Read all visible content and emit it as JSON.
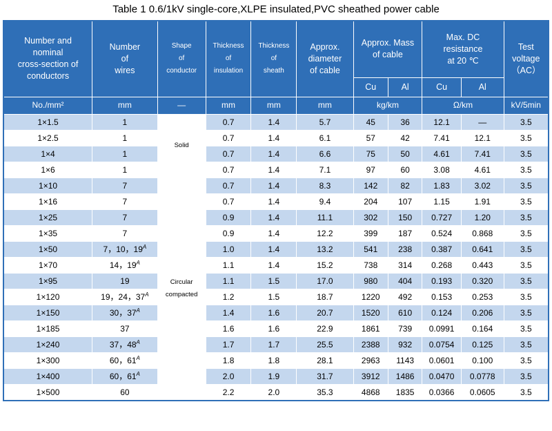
{
  "title": "Table 1    0.6/1kV single-core,XLPE insulated,PVC sheathed power cable",
  "headers": {
    "col1": [
      "Number and",
      "nominal",
      "cross-section of",
      "conductors"
    ],
    "col2": [
      "Number",
      "of",
      "wires"
    ],
    "col3": [
      "Shape",
      "of",
      "conductor"
    ],
    "col4": [
      "Thickness",
      "of",
      "insulation"
    ],
    "col5": [
      "Thickness",
      "of",
      "sheath"
    ],
    "col6": [
      "Approx.",
      "diameter",
      "of cable"
    ],
    "mass": [
      "Approx. Mass",
      "of cable"
    ],
    "resistance": [
      "Max. DC",
      "resistance",
      "at 20 ℃"
    ],
    "test": [
      "Test",
      "voltage",
      "（AC）"
    ],
    "sub": [
      "Cu",
      "Al",
      "Cu",
      "Al"
    ]
  },
  "units": [
    "No./mm²",
    "mm",
    "—",
    "mm",
    "mm",
    "mm",
    "kg/km",
    "Ω/km",
    "kV/5min"
  ],
  "shapes": {
    "solid": "Solid",
    "circular": [
      "Circular",
      "compacted"
    ]
  },
  "rows": [
    {
      "size": "1×1.5",
      "wires": "1",
      "wires_sup": "",
      "ins": "0.7",
      "sheath": "1.4",
      "dia": "5.7",
      "mcu": "45",
      "mal": "36",
      "rcu": "12.1",
      "ral": "—",
      "volt": "3.5"
    },
    {
      "size": "1×2.5",
      "wires": "1",
      "wires_sup": "",
      "ins": "0.7",
      "sheath": "1.4",
      "dia": "6.1",
      "mcu": "57",
      "mal": "42",
      "rcu": "7.41",
      "ral": "12.1",
      "volt": "3.5"
    },
    {
      "size": "1×4",
      "wires": "1",
      "wires_sup": "",
      "ins": "0.7",
      "sheath": "1.4",
      "dia": "6.6",
      "mcu": "75",
      "mal": "50",
      "rcu": "4.61",
      "ral": "7.41",
      "volt": "3.5"
    },
    {
      "size": "1×6",
      "wires": "1",
      "wires_sup": "",
      "ins": "0.7",
      "sheath": "1.4",
      "dia": "7.1",
      "mcu": "97",
      "mal": "60",
      "rcu": "3.08",
      "ral": "4.61",
      "volt": "3.5"
    },
    {
      "size": "1×10",
      "wires": "7",
      "wires_sup": "",
      "ins": "0.7",
      "sheath": "1.4",
      "dia": "8.3",
      "mcu": "142",
      "mal": "82",
      "rcu": "1.83",
      "ral": "3.02",
      "volt": "3.5"
    },
    {
      "size": "1×16",
      "wires": "7",
      "wires_sup": "",
      "ins": "0.7",
      "sheath": "1.4",
      "dia": "9.4",
      "mcu": "204",
      "mal": "107",
      "rcu": "1.15",
      "ral": "1.91",
      "volt": "3.5"
    },
    {
      "size": "1×25",
      "wires": "7",
      "wires_sup": "",
      "ins": "0.9",
      "sheath": "1.4",
      "dia": "11.1",
      "mcu": "302",
      "mal": "150",
      "rcu": "0.727",
      "ral": "1.20",
      "volt": "3.5"
    },
    {
      "size": "1×35",
      "wires": "7",
      "wires_sup": "",
      "ins": "0.9",
      "sheath": "1.4",
      "dia": "12.2",
      "mcu": "399",
      "mal": "187",
      "rcu": "0.524",
      "ral": "0.868",
      "volt": "3.5"
    },
    {
      "size": "1×50",
      "wires": "7，10，19",
      "wires_sup": "A",
      "ins": "1.0",
      "sheath": "1.4",
      "dia": "13.2",
      "mcu": "541",
      "mal": "238",
      "rcu": "0.387",
      "ral": "0.641",
      "volt": "3.5"
    },
    {
      "size": "1×70",
      "wires": "14，19",
      "wires_sup": "A",
      "ins": "1.1",
      "sheath": "1.4",
      "dia": "15.2",
      "mcu": "738",
      "mal": "314",
      "rcu": "0.268",
      "ral": "0.443",
      "volt": "3.5"
    },
    {
      "size": "1×95",
      "wires": "19",
      "wires_sup": "",
      "ins": "1.1",
      "sheath": "1.5",
      "dia": "17.0",
      "mcu": "980",
      "mal": "404",
      "rcu": "0.193",
      "ral": "0.320",
      "volt": "3.5"
    },
    {
      "size": "1×120",
      "wires": "19，24，37",
      "wires_sup": "A",
      "ins": "1.2",
      "sheath": "1.5",
      "dia": "18.7",
      "mcu": "1220",
      "mal": "492",
      "rcu": "0.153",
      "ral": "0.253",
      "volt": "3.5"
    },
    {
      "size": "1×150",
      "wires": "30，37",
      "wires_sup": "A",
      "ins": "1.4",
      "sheath": "1.6",
      "dia": "20.7",
      "mcu": "1520",
      "mal": "610",
      "rcu": "0.124",
      "ral": "0.206",
      "volt": "3.5"
    },
    {
      "size": "1×185",
      "wires": "37",
      "wires_sup": "",
      "ins": "1.6",
      "sheath": "1.6",
      "dia": "22.9",
      "mcu": "1861",
      "mal": "739",
      "rcu": "0.0991",
      "ral": "0.164",
      "volt": "3.5"
    },
    {
      "size": "1×240",
      "wires": "37，48",
      "wires_sup": "A",
      "ins": "1.7",
      "sheath": "1.7",
      "dia": "25.5",
      "mcu": "2388",
      "mal": "932",
      "rcu": "0.0754",
      "ral": "0.125",
      "volt": "3.5"
    },
    {
      "size": "1×300",
      "wires": "60，61",
      "wires_sup": "A",
      "ins": "1.8",
      "sheath": "1.8",
      "dia": "28.1",
      "mcu": "2963",
      "mal": "1143",
      "rcu": "0.0601",
      "ral": "0.100",
      "volt": "3.5"
    },
    {
      "size": "1×400",
      "wires": "60，61",
      "wires_sup": "A",
      "ins": "2.0",
      "sheath": "1.9",
      "dia": "31.7",
      "mcu": "3912",
      "mal": "1486",
      "rcu": "0.0470",
      "ral": "0.0778",
      "volt": "3.5"
    },
    {
      "size": "1×500",
      "wires": "60",
      "wires_sup": "",
      "ins": "2.2",
      "sheath": "2.0",
      "dia": "35.3",
      "mcu": "4868",
      "mal": "1835",
      "rcu": "0.0366",
      "ral": "0.0605",
      "volt": "3.5"
    }
  ]
}
